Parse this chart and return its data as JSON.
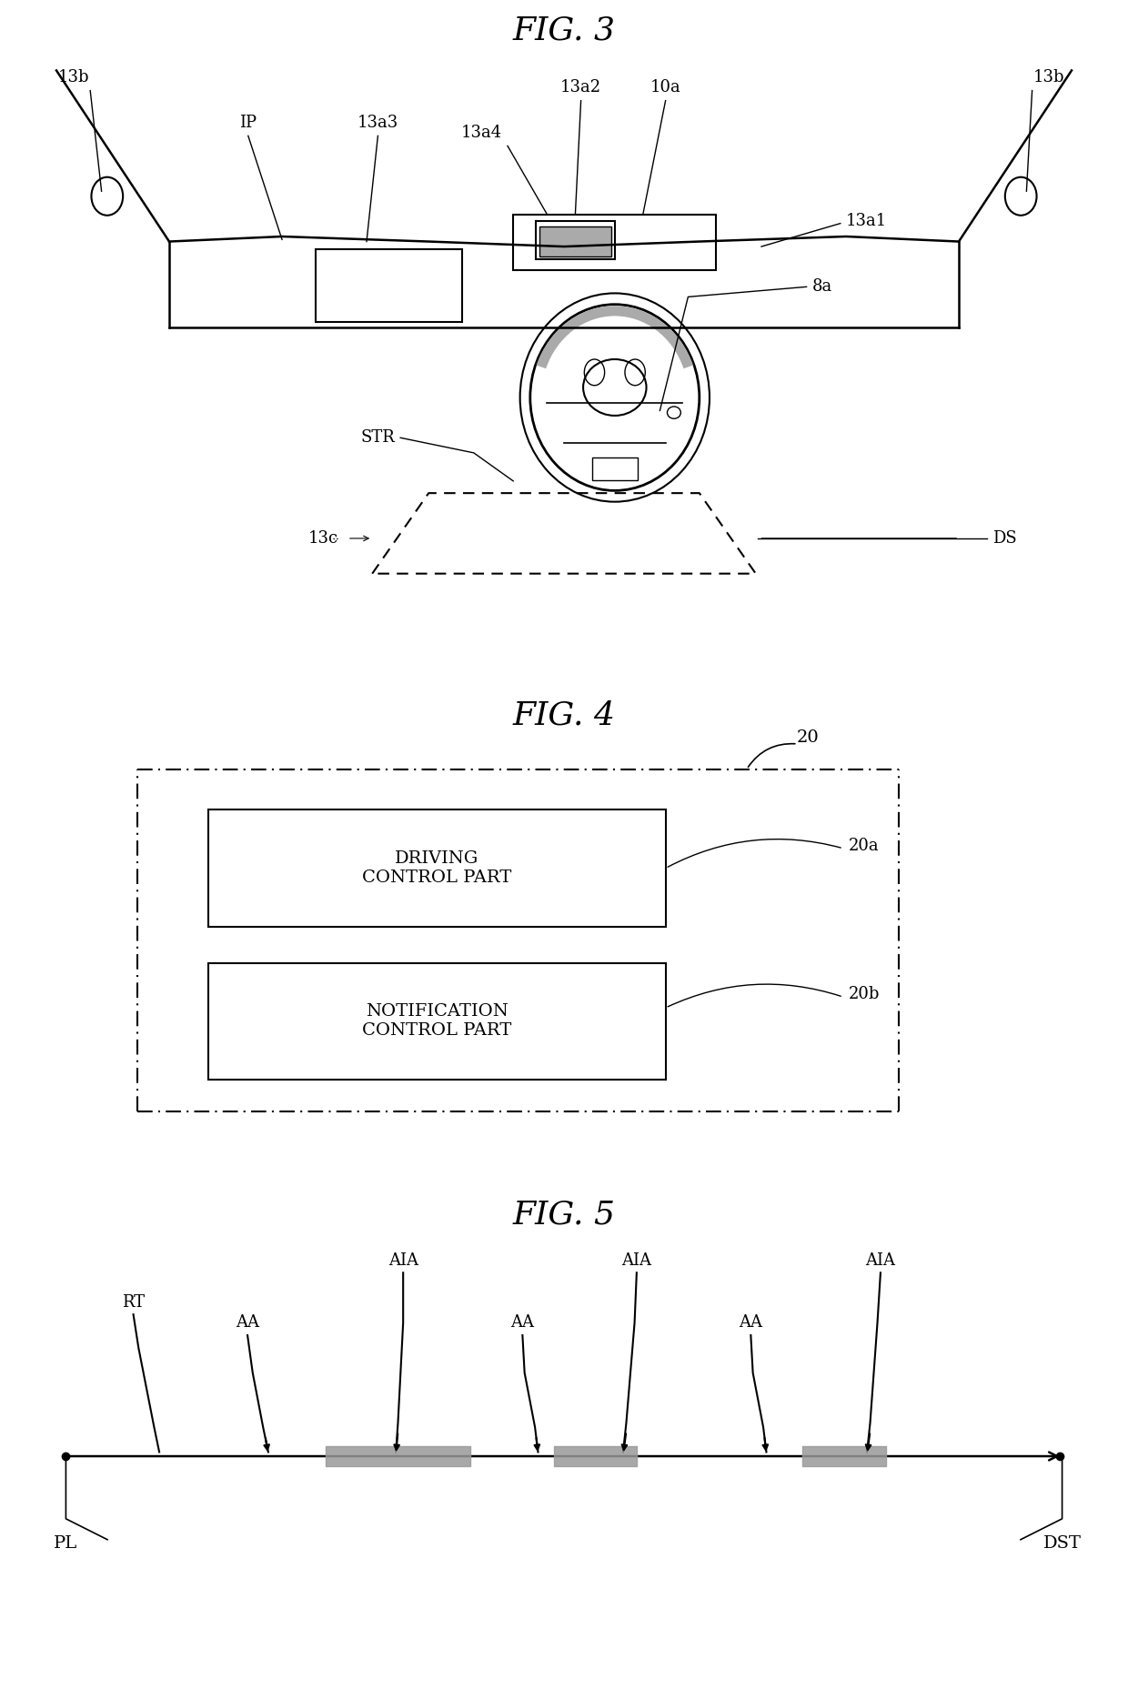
{
  "fig3_title": "FIG. 3",
  "fig4_title": "FIG. 4",
  "fig5_title": "FIG. 5",
  "bg_color": "#ffffff",
  "line_color": "#000000",
  "gray_color": "#aaaaaa",
  "dark_gray": "#555555",
  "fig4_box1_text": "DRIVING\nCONTROL PART",
  "fig4_box2_text": "NOTIFICATION\nCONTROL PART",
  "label_20": "20",
  "label_20a": "20a",
  "label_20b": "20b",
  "font_size_title": 26,
  "font_size_label": 13,
  "font_size_box": 14
}
